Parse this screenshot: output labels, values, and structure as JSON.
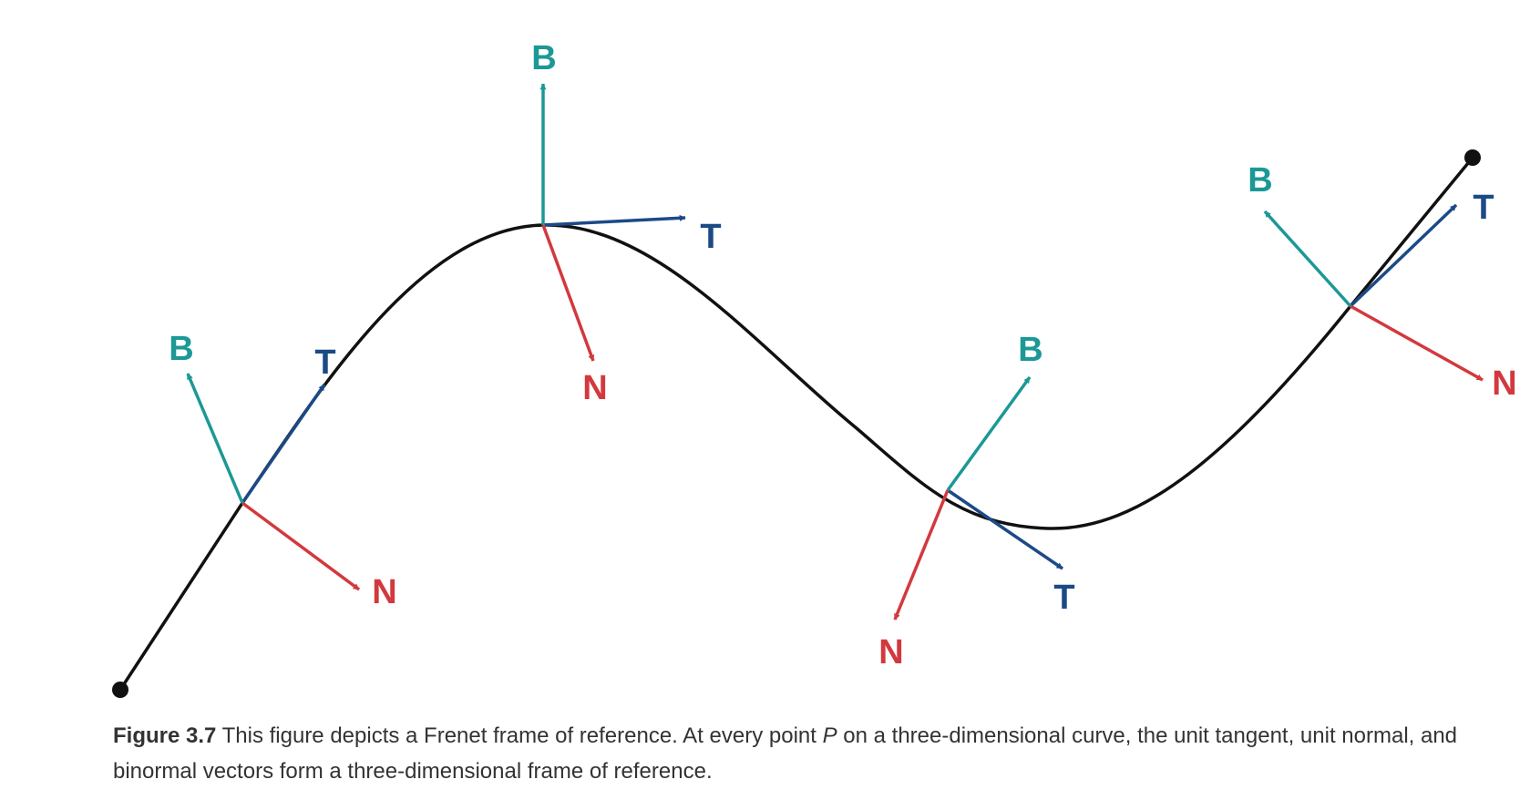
{
  "figure": {
    "number_label": "Figure 3.7",
    "caption_before": " This figure depicts a Frenet frame of reference. At every point ",
    "caption_variable": "P",
    "caption_after": " on a three-dimensional curve, the unit tangent, unit normal, and binormal vectors form a three-dimensional frame of reference."
  },
  "colors": {
    "curve": "#111111",
    "tangent": "#1b4a86",
    "normal": "#d2393e",
    "binormal": "#1c9896"
  },
  "vector_labels": {
    "tangent": "T",
    "normal": "N",
    "binormal": "B"
  },
  "frames": [
    {
      "id": "frame-1",
      "T": "T",
      "N": "N",
      "B": "B"
    },
    {
      "id": "frame-2",
      "T": "T",
      "N": "N",
      "B": "B"
    },
    {
      "id": "frame-3",
      "T": "T",
      "N": "N",
      "B": "B"
    },
    {
      "id": "frame-4",
      "T": "T",
      "N": "N",
      "B": "B"
    }
  ]
}
